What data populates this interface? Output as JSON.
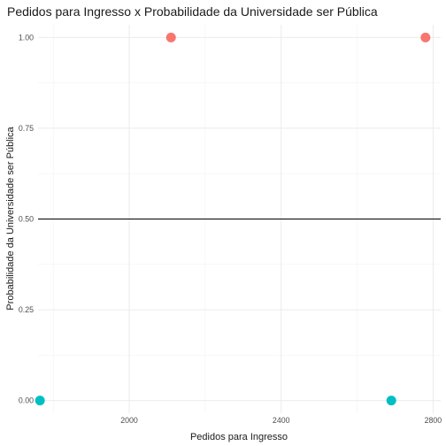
{
  "chart_data": {
    "type": "scatter",
    "title": "Pedidos para Ingresso x Probabilidade da Universidade ser Pública",
    "xlabel": "Pedidos para Ingresso",
    "ylabel": "Probabilidade da Universidade ser Pública",
    "xlim": [
      1760,
      2820
    ],
    "ylim": [
      -0.035,
      1.035
    ],
    "x_ticks": [
      2000,
      2400,
      2800
    ],
    "x_tick_labels": [
      "2000",
      "2400",
      "2800"
    ],
    "y_ticks": [
      0,
      0.25,
      0.5,
      0.75,
      1
    ],
    "y_tick_labels": [
      "0.00",
      "0.25",
      "0.50",
      "0.75",
      "1.00"
    ],
    "reference_line_y": 0.5,
    "grid": true,
    "legend": "none",
    "points": [
      {
        "x": 2110,
        "y": 1.0,
        "color": "#F8766D"
      },
      {
        "x": 2780,
        "y": 1.0,
        "color": "#F8766D"
      },
      {
        "x": 1765,
        "y": 0.0,
        "color": "#00BFC4"
      },
      {
        "x": 2690,
        "y": 0.0,
        "color": "#00BFC4"
      }
    ]
  }
}
